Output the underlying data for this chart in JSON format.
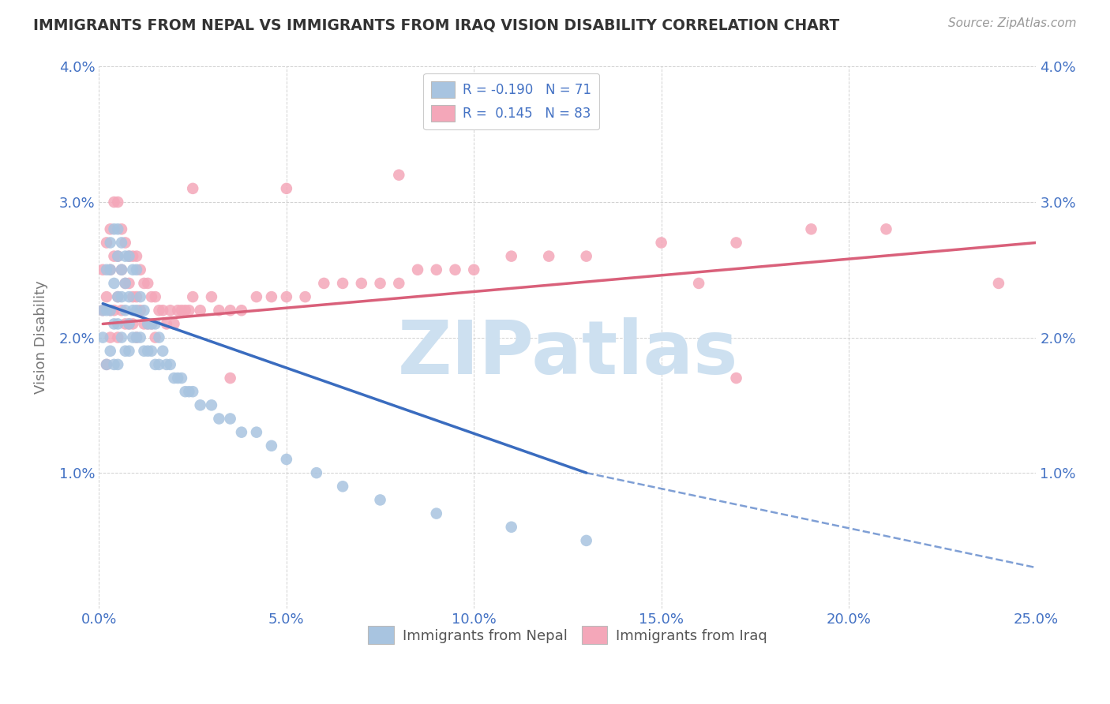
{
  "title": "IMMIGRANTS FROM NEPAL VS IMMIGRANTS FROM IRAQ VISION DISABILITY CORRELATION CHART",
  "source_text": "Source: ZipAtlas.com",
  "ylabel_label": "Vision Disability",
  "xlim": [
    0.0,
    0.25
  ],
  "ylim": [
    0.0,
    0.04
  ],
  "xticks": [
    0.0,
    0.05,
    0.1,
    0.15,
    0.2,
    0.25
  ],
  "yticks": [
    0.0,
    0.01,
    0.02,
    0.03,
    0.04
  ],
  "xticklabels": [
    "0.0%",
    "5.0%",
    "10.0%",
    "15.0%",
    "20.0%",
    "25.0%"
  ],
  "yticklabels": [
    "",
    "1.0%",
    "2.0%",
    "3.0%",
    "4.0%"
  ],
  "nepal_color": "#a8c4e0",
  "iraq_color": "#f4a7b9",
  "nepal_line_color": "#3a6cbf",
  "iraq_line_color": "#d9607a",
  "nepal_R": -0.19,
  "nepal_N": 71,
  "iraq_R": 0.145,
  "iraq_N": 83,
  "nepal_scatter_x": [
    0.001,
    0.001,
    0.002,
    0.002,
    0.002,
    0.003,
    0.003,
    0.003,
    0.003,
    0.004,
    0.004,
    0.004,
    0.004,
    0.005,
    0.005,
    0.005,
    0.005,
    0.005,
    0.006,
    0.006,
    0.006,
    0.006,
    0.007,
    0.007,
    0.007,
    0.007,
    0.008,
    0.008,
    0.008,
    0.008,
    0.009,
    0.009,
    0.009,
    0.01,
    0.01,
    0.01,
    0.011,
    0.011,
    0.012,
    0.012,
    0.013,
    0.013,
    0.014,
    0.014,
    0.015,
    0.015,
    0.016,
    0.016,
    0.017,
    0.018,
    0.019,
    0.02,
    0.021,
    0.022,
    0.023,
    0.024,
    0.025,
    0.027,
    0.03,
    0.032,
    0.035,
    0.038,
    0.042,
    0.046,
    0.05,
    0.058,
    0.065,
    0.075,
    0.09,
    0.11,
    0.13
  ],
  "nepal_scatter_y": [
    0.02,
    0.022,
    0.022,
    0.018,
    0.025,
    0.027,
    0.025,
    0.022,
    0.019,
    0.028,
    0.024,
    0.021,
    0.018,
    0.028,
    0.026,
    0.023,
    0.021,
    0.018,
    0.027,
    0.025,
    0.023,
    0.02,
    0.026,
    0.024,
    0.022,
    0.019,
    0.026,
    0.023,
    0.021,
    0.019,
    0.025,
    0.022,
    0.02,
    0.025,
    0.022,
    0.02,
    0.023,
    0.02,
    0.022,
    0.019,
    0.021,
    0.019,
    0.021,
    0.019,
    0.021,
    0.018,
    0.02,
    0.018,
    0.019,
    0.018,
    0.018,
    0.017,
    0.017,
    0.017,
    0.016,
    0.016,
    0.016,
    0.015,
    0.015,
    0.014,
    0.014,
    0.013,
    0.013,
    0.012,
    0.011,
    0.01,
    0.009,
    0.008,
    0.007,
    0.006,
    0.005
  ],
  "iraq_scatter_x": [
    0.001,
    0.001,
    0.002,
    0.002,
    0.002,
    0.003,
    0.003,
    0.003,
    0.003,
    0.004,
    0.004,
    0.004,
    0.005,
    0.005,
    0.005,
    0.005,
    0.006,
    0.006,
    0.006,
    0.007,
    0.007,
    0.007,
    0.008,
    0.008,
    0.008,
    0.009,
    0.009,
    0.009,
    0.01,
    0.01,
    0.01,
    0.011,
    0.011,
    0.012,
    0.012,
    0.013,
    0.013,
    0.014,
    0.014,
    0.015,
    0.015,
    0.016,
    0.017,
    0.018,
    0.019,
    0.02,
    0.021,
    0.022,
    0.023,
    0.024,
    0.025,
    0.027,
    0.03,
    0.032,
    0.035,
    0.038,
    0.042,
    0.046,
    0.05,
    0.055,
    0.06,
    0.065,
    0.07,
    0.075,
    0.08,
    0.085,
    0.09,
    0.095,
    0.1,
    0.11,
    0.12,
    0.13,
    0.15,
    0.17,
    0.19,
    0.21,
    0.05,
    0.08,
    0.17,
    0.24,
    0.035,
    0.025,
    0.16
  ],
  "iraq_scatter_y": [
    0.022,
    0.025,
    0.018,
    0.023,
    0.027,
    0.028,
    0.025,
    0.022,
    0.02,
    0.03,
    0.026,
    0.022,
    0.03,
    0.026,
    0.023,
    0.02,
    0.028,
    0.025,
    0.022,
    0.027,
    0.024,
    0.021,
    0.026,
    0.024,
    0.021,
    0.026,
    0.023,
    0.021,
    0.026,
    0.023,
    0.02,
    0.025,
    0.022,
    0.024,
    0.021,
    0.024,
    0.021,
    0.023,
    0.021,
    0.023,
    0.02,
    0.022,
    0.022,
    0.021,
    0.022,
    0.021,
    0.022,
    0.022,
    0.022,
    0.022,
    0.023,
    0.022,
    0.023,
    0.022,
    0.022,
    0.022,
    0.023,
    0.023,
    0.023,
    0.023,
    0.024,
    0.024,
    0.024,
    0.024,
    0.024,
    0.025,
    0.025,
    0.025,
    0.025,
    0.026,
    0.026,
    0.026,
    0.027,
    0.027,
    0.028,
    0.028,
    0.031,
    0.032,
    0.017,
    0.024,
    0.017,
    0.031,
    0.024
  ],
  "background_color": "#ffffff",
  "grid_color": "#cccccc",
  "title_color": "#333333",
  "axis_color": "#4472c4",
  "watermark_text": "ZIPatlas",
  "watermark_color": "#cde0f0",
  "nepal_trend_x_start": 0.001,
  "nepal_trend_x_solid_end": 0.13,
  "nepal_trend_x_dash_end": 0.25,
  "iraq_trend_x_start": 0.001,
  "iraq_trend_x_end": 0.25
}
